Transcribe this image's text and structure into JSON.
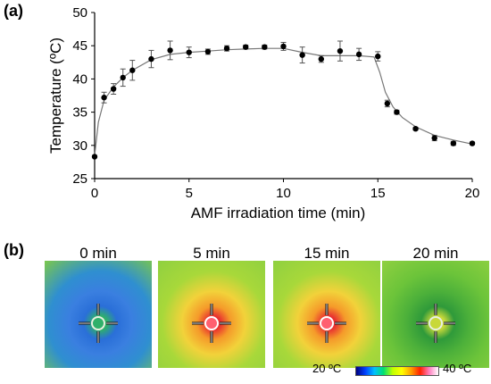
{
  "panel_labels": {
    "a": "(a)",
    "b": "(b)"
  },
  "chart_data": {
    "type": "scatter",
    "xlabel": "AMF irradiation time (min)",
    "ylabel": "Temperature (ºC)",
    "xlim": [
      0,
      20
    ],
    "ylim": [
      25,
      50
    ],
    "xticks": [
      "0",
      "5",
      "10",
      "15",
      "20"
    ],
    "yticks": [
      "25",
      "30",
      "35",
      "40",
      "45",
      "50"
    ],
    "grid": false,
    "series": [
      {
        "x": [
          0,
          0.5,
          1,
          1.5,
          2,
          3,
          4,
          5,
          6,
          7,
          8,
          9,
          10,
          11,
          12,
          13,
          14,
          15,
          15.5,
          16,
          17,
          18,
          19,
          20
        ],
        "y": [
          28.3,
          37.2,
          38.5,
          40.2,
          41.3,
          43.0,
          44.3,
          44.0,
          44.1,
          44.6,
          44.8,
          44.8,
          44.9,
          43.6,
          43.0,
          44.2,
          43.7,
          43.4,
          36.3,
          35.0,
          32.5,
          31.1,
          30.3,
          30.3
        ],
        "err": [
          0,
          0.8,
          0.8,
          1.3,
          1.5,
          1.3,
          1.4,
          0.8,
          0.4,
          0.4,
          0.3,
          0.3,
          0.6,
          1.2,
          0.5,
          1.5,
          0.9,
          0.7,
          0.5,
          0.3,
          0.2,
          0.4,
          0.3,
          0.2
        ]
      }
    ],
    "fit_curve": {
      "x": [
        0,
        0.2,
        0.5,
        1,
        1.5,
        2,
        3,
        4,
        5,
        6,
        7,
        8,
        9,
        10,
        11,
        12,
        13,
        14,
        14.8,
        15.1,
        15.4,
        15.8,
        16.3,
        17,
        18,
        19,
        20
      ],
      "y": [
        28.5,
        33.5,
        36.8,
        38.8,
        40.2,
        41.3,
        42.9,
        43.7,
        44.0,
        44.2,
        44.4,
        44.5,
        44.6,
        44.6,
        44.0,
        43.5,
        43.5,
        43.5,
        43.3,
        41.0,
        38.0,
        35.8,
        34.2,
        32.8,
        31.5,
        30.8,
        30.2
      ]
    }
  },
  "thermal_images": [
    {
      "label": "0 min",
      "colors": {
        "outer": "#2f8fd0",
        "mid": "#3a7fe0",
        "ring": "#2a6fd8",
        "center": "#2fb06a"
      },
      "target": "cool",
      "edge": "#7cc84a"
    },
    {
      "label": "5 min",
      "colors": {
        "outer": "#a8d83a",
        "mid": "#f2d23a",
        "ring": "#f59a2a",
        "center": "#e83030"
      },
      "target": "hot",
      "edge": "#8fd040"
    },
    {
      "label": "15 min",
      "colors": {
        "outer": "#a8d83a",
        "mid": "#f2d23a",
        "ring": "#f59a2a",
        "center": "#e83030"
      },
      "target": "hot",
      "edge": "#8fd040"
    },
    {
      "label": "20 min",
      "colors": {
        "outer": "#6cc43a",
        "mid": "#4cb03a",
        "ring": "#2f9a3a",
        "center": "#c8d83a"
      },
      "target": "warm",
      "edge": "#8fd040"
    }
  ],
  "colorbar": {
    "min_label": "20 ºC",
    "max_label": "40 ºC"
  }
}
